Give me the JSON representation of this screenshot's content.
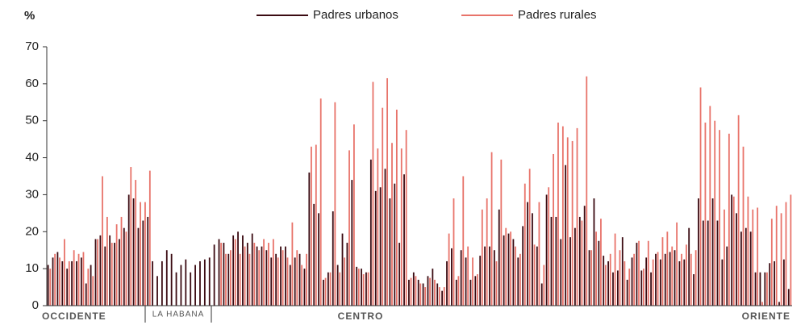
{
  "chart_data": {
    "type": "bar",
    "y_label": "%",
    "regions": [
      "OCCIDENTE",
      "LA HABANA",
      "CENTRO",
      "ORIENTE"
    ],
    "ylim": [
      0,
      70
    ],
    "yticks": [
      0,
      10,
      20,
      30,
      40,
      50,
      60,
      70
    ],
    "series": [
      {
        "name": "Padres urbanos",
        "color": "#3b0b12",
        "values": [
          11,
          13,
          14.5,
          12,
          10,
          12,
          12,
          13,
          6,
          11,
          18,
          19,
          16,
          19,
          17,
          18,
          21,
          30,
          29,
          21,
          23,
          24,
          12,
          8,
          12,
          15,
          14,
          9,
          11,
          12.5,
          9,
          11,
          12,
          12.5,
          13,
          16.5,
          18,
          17,
          14,
          19,
          20,
          19,
          17,
          19.5,
          16,
          16,
          15,
          13,
          14,
          16,
          16,
          11,
          13,
          14,
          10,
          36,
          27.5,
          25,
          7,
          9,
          25.5,
          11,
          19.5,
          17,
          34,
          10.5,
          10,
          9,
          39.5,
          31,
          32,
          37,
          29,
          33,
          17,
          35.5,
          7,
          9,
          7,
          6,
          8,
          10,
          6,
          4,
          12,
          15.5,
          7,
          15,
          13,
          7,
          8,
          13.5,
          16,
          16,
          15,
          26,
          19,
          19.5,
          18,
          13,
          21.5,
          28,
          25,
          16,
          6,
          30,
          24,
          24,
          18,
          38,
          18.5,
          21,
          24,
          27,
          15,
          29,
          17.5,
          13.5,
          12,
          9,
          9.5,
          18.5,
          7,
          13,
          17,
          9.5,
          13,
          9,
          14,
          12.5,
          14,
          14.5,
          15,
          12,
          12.5,
          21,
          8.5,
          29,
          23,
          23,
          29,
          23,
          12.5,
          16,
          30,
          25,
          20,
          21,
          20,
          9,
          9,
          9,
          11.5,
          12,
          1,
          12.5,
          4.5
        ]
      },
      {
        "name": "Padres rurales",
        "color": "#e8736a",
        "values": [
          10,
          14,
          13,
          18,
          12,
          15,
          14,
          14.5,
          10,
          8,
          18,
          35,
          24,
          17,
          22,
          24,
          20,
          37.5,
          34,
          28,
          28,
          36.5,
          null,
          null,
          null,
          null,
          null,
          null,
          null,
          null,
          null,
          null,
          null,
          null,
          null,
          null,
          17,
          14,
          15,
          18,
          14,
          16,
          14,
          17,
          15,
          18,
          17,
          18,
          13,
          15,
          13,
          22.5,
          15,
          11,
          14,
          43,
          43.5,
          56,
          7.5,
          9,
          55,
          9,
          13,
          42,
          49,
          10,
          8.5,
          9,
          60.5,
          42.5,
          53.5,
          61.5,
          44,
          53,
          42.5,
          47.5,
          7.5,
          8,
          6,
          5,
          7.5,
          7,
          5,
          5,
          19.5,
          29,
          8,
          35,
          16,
          13,
          8.5,
          26,
          29,
          41.5,
          12,
          39.5,
          21,
          20,
          16,
          14,
          33,
          37,
          16.5,
          28,
          11,
          32,
          41,
          49.5,
          48.5,
          45.5,
          44.5,
          48,
          23,
          62,
          15,
          20,
          23.5,
          11,
          14,
          19.5,
          15,
          12,
          10,
          14,
          17.5,
          10,
          17.5,
          12.5,
          14.5,
          18.5,
          20,
          16,
          22.5,
          14,
          16.5,
          14,
          15,
          59,
          49.5,
          54,
          50,
          47.5,
          26,
          46.5,
          29.5,
          51.5,
          43,
          29.5,
          26,
          26.5,
          1,
          9,
          23.5,
          27,
          25,
          28,
          30
        ]
      }
    ]
  }
}
